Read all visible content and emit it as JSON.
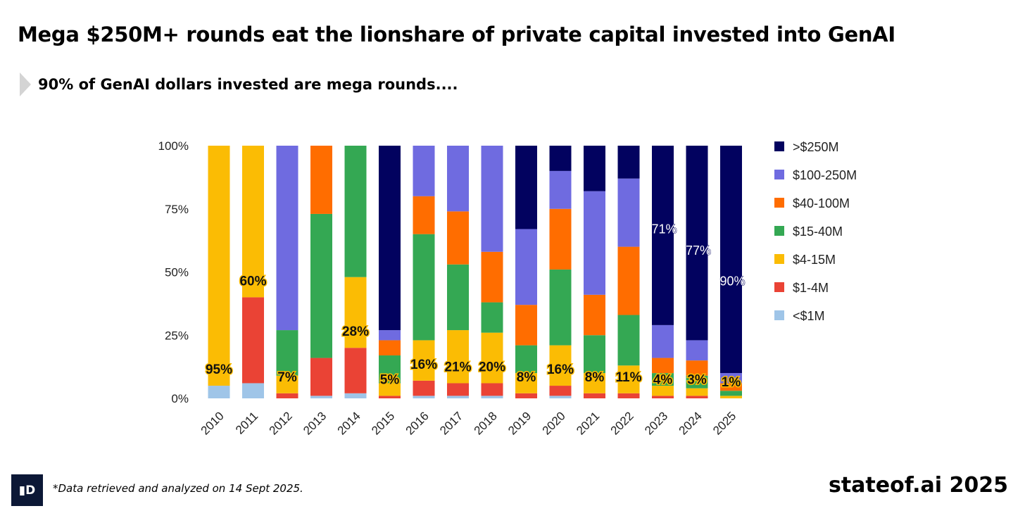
{
  "header": {
    "title": "Mega $250M+ rounds eat the lionshare of private capital invested into GenAI",
    "subtitle": "90% of GenAI dollars invested are mega rounds...."
  },
  "footer": {
    "logo_text": "▐D",
    "footnote": "*Data retrieved and analyzed on 14 Sept 2025.",
    "brand": "stateof.ai 2025"
  },
  "chart_data": {
    "type": "bar",
    "stacked": true,
    "title": "",
    "xlabel": "",
    "ylabel": "",
    "ylim": [
      0,
      100
    ],
    "yticks": [
      "0%",
      "25%",
      "50%",
      "75%",
      "100%"
    ],
    "legend_position": "right",
    "categories": [
      "2010",
      "2011",
      "2012",
      "2013",
      "2014",
      "2015",
      "2016",
      "2017",
      "2018",
      "2019",
      "2020",
      "2021",
      "2022",
      "2023",
      "2024",
      "2025"
    ],
    "series": [
      {
        "name": "<$1M",
        "color": "#9fc5e8",
        "values": [
          5,
          6,
          0,
          1,
          2,
          0,
          1,
          1,
          1,
          0,
          1,
          0,
          0,
          0,
          0,
          0
        ]
      },
      {
        "name": "$1-4M",
        "color": "#ea4335",
        "values": [
          0,
          34,
          2,
          15,
          18,
          1,
          6,
          5,
          5,
          2,
          4,
          2,
          2,
          1,
          1,
          0
        ]
      },
      {
        "name": "$4-15M",
        "color": "#fbbc04",
        "values": [
          95,
          60,
          7,
          0,
          28,
          5,
          16,
          21,
          20,
          8,
          16,
          8,
          11,
          4,
          3,
          1
        ]
      },
      {
        "name": "$15-40M",
        "color": "#34a853",
        "values": [
          0,
          0,
          18,
          57,
          52,
          11,
          42,
          26,
          12,
          11,
          30,
          15,
          20,
          5,
          5,
          2
        ]
      },
      {
        "name": "$40-100M",
        "color": "#ff6d00",
        "values": [
          0,
          0,
          0,
          27,
          0,
          6,
          15,
          21,
          20,
          16,
          24,
          16,
          27,
          6,
          6,
          3
        ]
      },
      {
        "name": "$100-250M",
        "color": "#6f6be0",
        "values": [
          0,
          0,
          73,
          0,
          0,
          4,
          20,
          26,
          42,
          30,
          15,
          41,
          27,
          13,
          8,
          4
        ]
      },
      {
        "name": ">$250M",
        "color": "#02025f",
        "values": [
          0,
          0,
          0,
          0,
          0,
          73,
          0,
          0,
          0,
          33,
          10,
          18,
          13,
          71,
          77,
          90
        ]
      }
    ],
    "labels_4_15M": [
      "95%",
      "60%",
      "7%",
      "",
      "28%",
      "5%",
      "16%",
      "21%",
      "20%",
      "8%",
      "16%",
      "8%",
      "11%",
      "4%",
      "3%",
      "1%"
    ],
    "labels_250M": [
      "",
      "",
      "",
      "",
      "",
      "",
      "",
      "",
      "",
      "",
      "",
      "",
      "",
      "71%",
      "77%",
      "90%"
    ]
  }
}
